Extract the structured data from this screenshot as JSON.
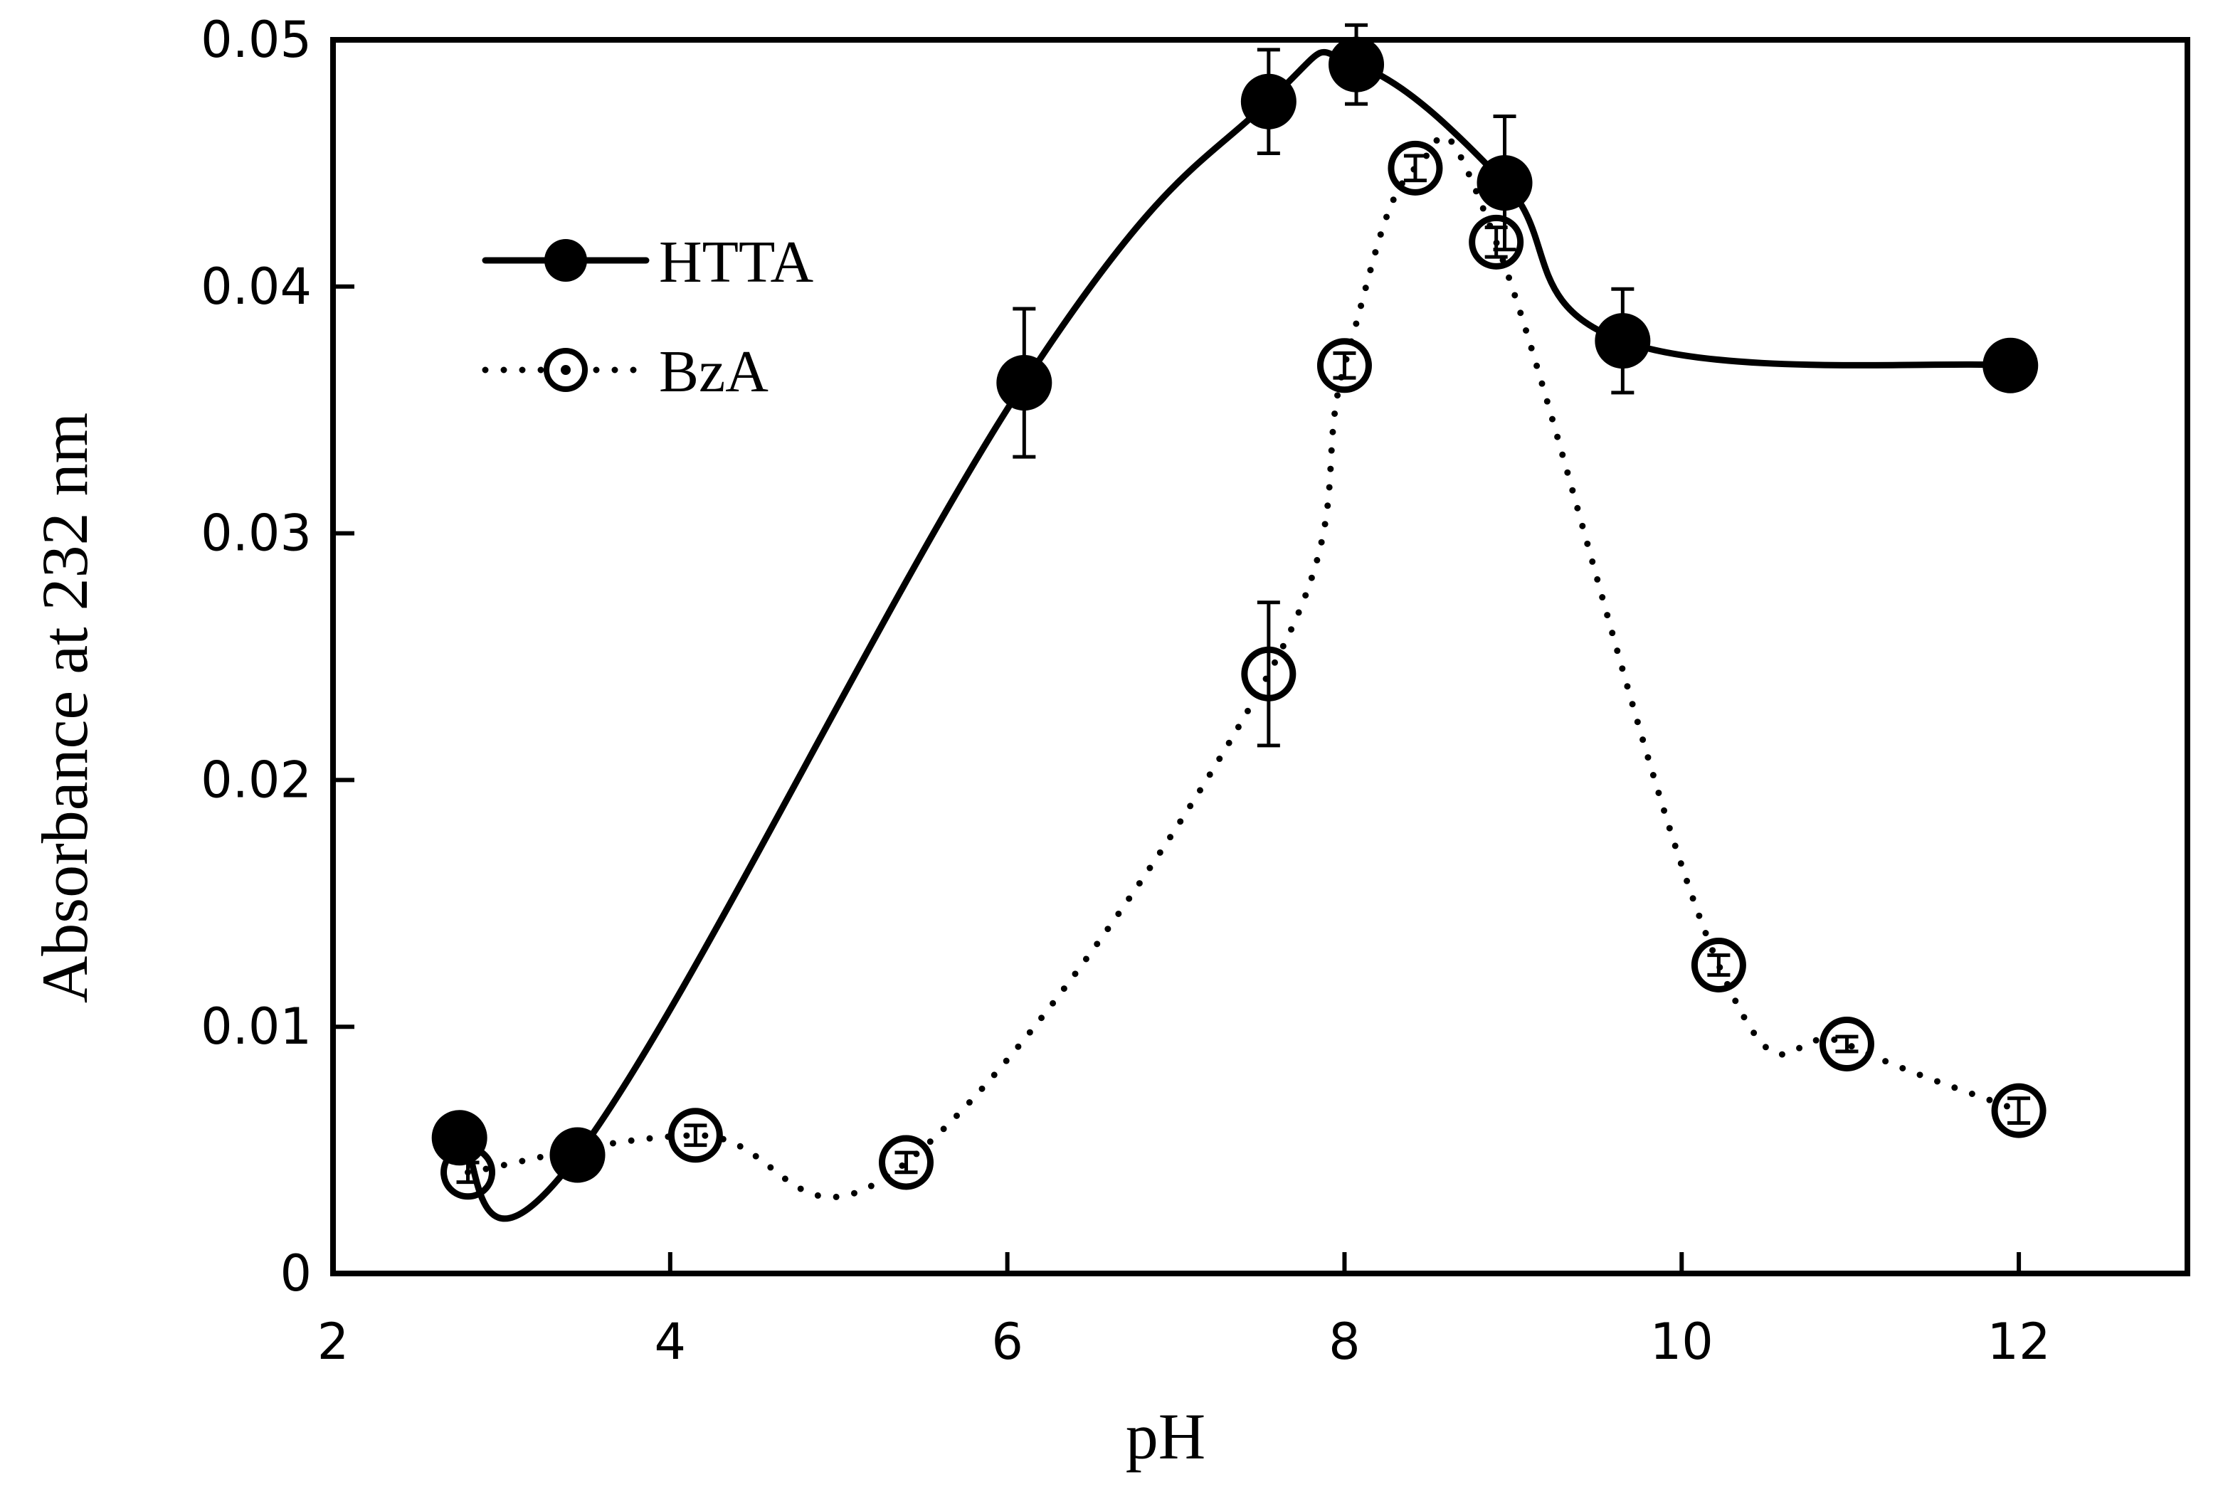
{
  "chart_data": {
    "type": "line",
    "title": "",
    "xlabel": "pH",
    "ylabel": "Absorbance at 232 nm",
    "xlim": [
      2,
      13
    ],
    "ylim": [
      0,
      0.05
    ],
    "xticks": [
      "2",
      "4",
      "6",
      "8",
      "10",
      "12"
    ],
    "yticks": [
      "0",
      "0.01",
      "0.02",
      "0.03",
      "0.04",
      "0.05"
    ],
    "grid": false,
    "legend_position": "top-left",
    "series": [
      {
        "name": "HTTA",
        "line_style": "solid",
        "marker": "filled-circle",
        "color": "#000000",
        "x": [
          2.75,
          3.45,
          6.1,
          7.55,
          8.07,
          8.95,
          9.65,
          11.95
        ],
        "y": [
          0.0055,
          0.0048,
          0.0361,
          0.0475,
          0.049,
          0.0442,
          0.0378,
          0.0368
        ],
        "err": [
          0.0,
          0.0,
          0.003,
          0.0021,
          0.0016,
          0.0027,
          0.0021,
          0.0
        ]
      },
      {
        "name": "BzA",
        "line_style": "dotted",
        "marker": "open-circle",
        "color": "#000000",
        "x": [
          2.8,
          4.15,
          5.4,
          7.55,
          8.0,
          8.42,
          8.9,
          10.22,
          10.98,
          12.0
        ],
        "y": [
          0.0041,
          0.0056,
          0.0045,
          0.0243,
          0.0368,
          0.0448,
          0.0418,
          0.0125,
          0.0093,
          0.0066
        ],
        "err": [
          0.0004,
          0.0004,
          0.0004,
          0.0029,
          0.0005,
          0.0005,
          0.0006,
          0.0004,
          0.0003,
          0.0005
        ]
      }
    ]
  }
}
